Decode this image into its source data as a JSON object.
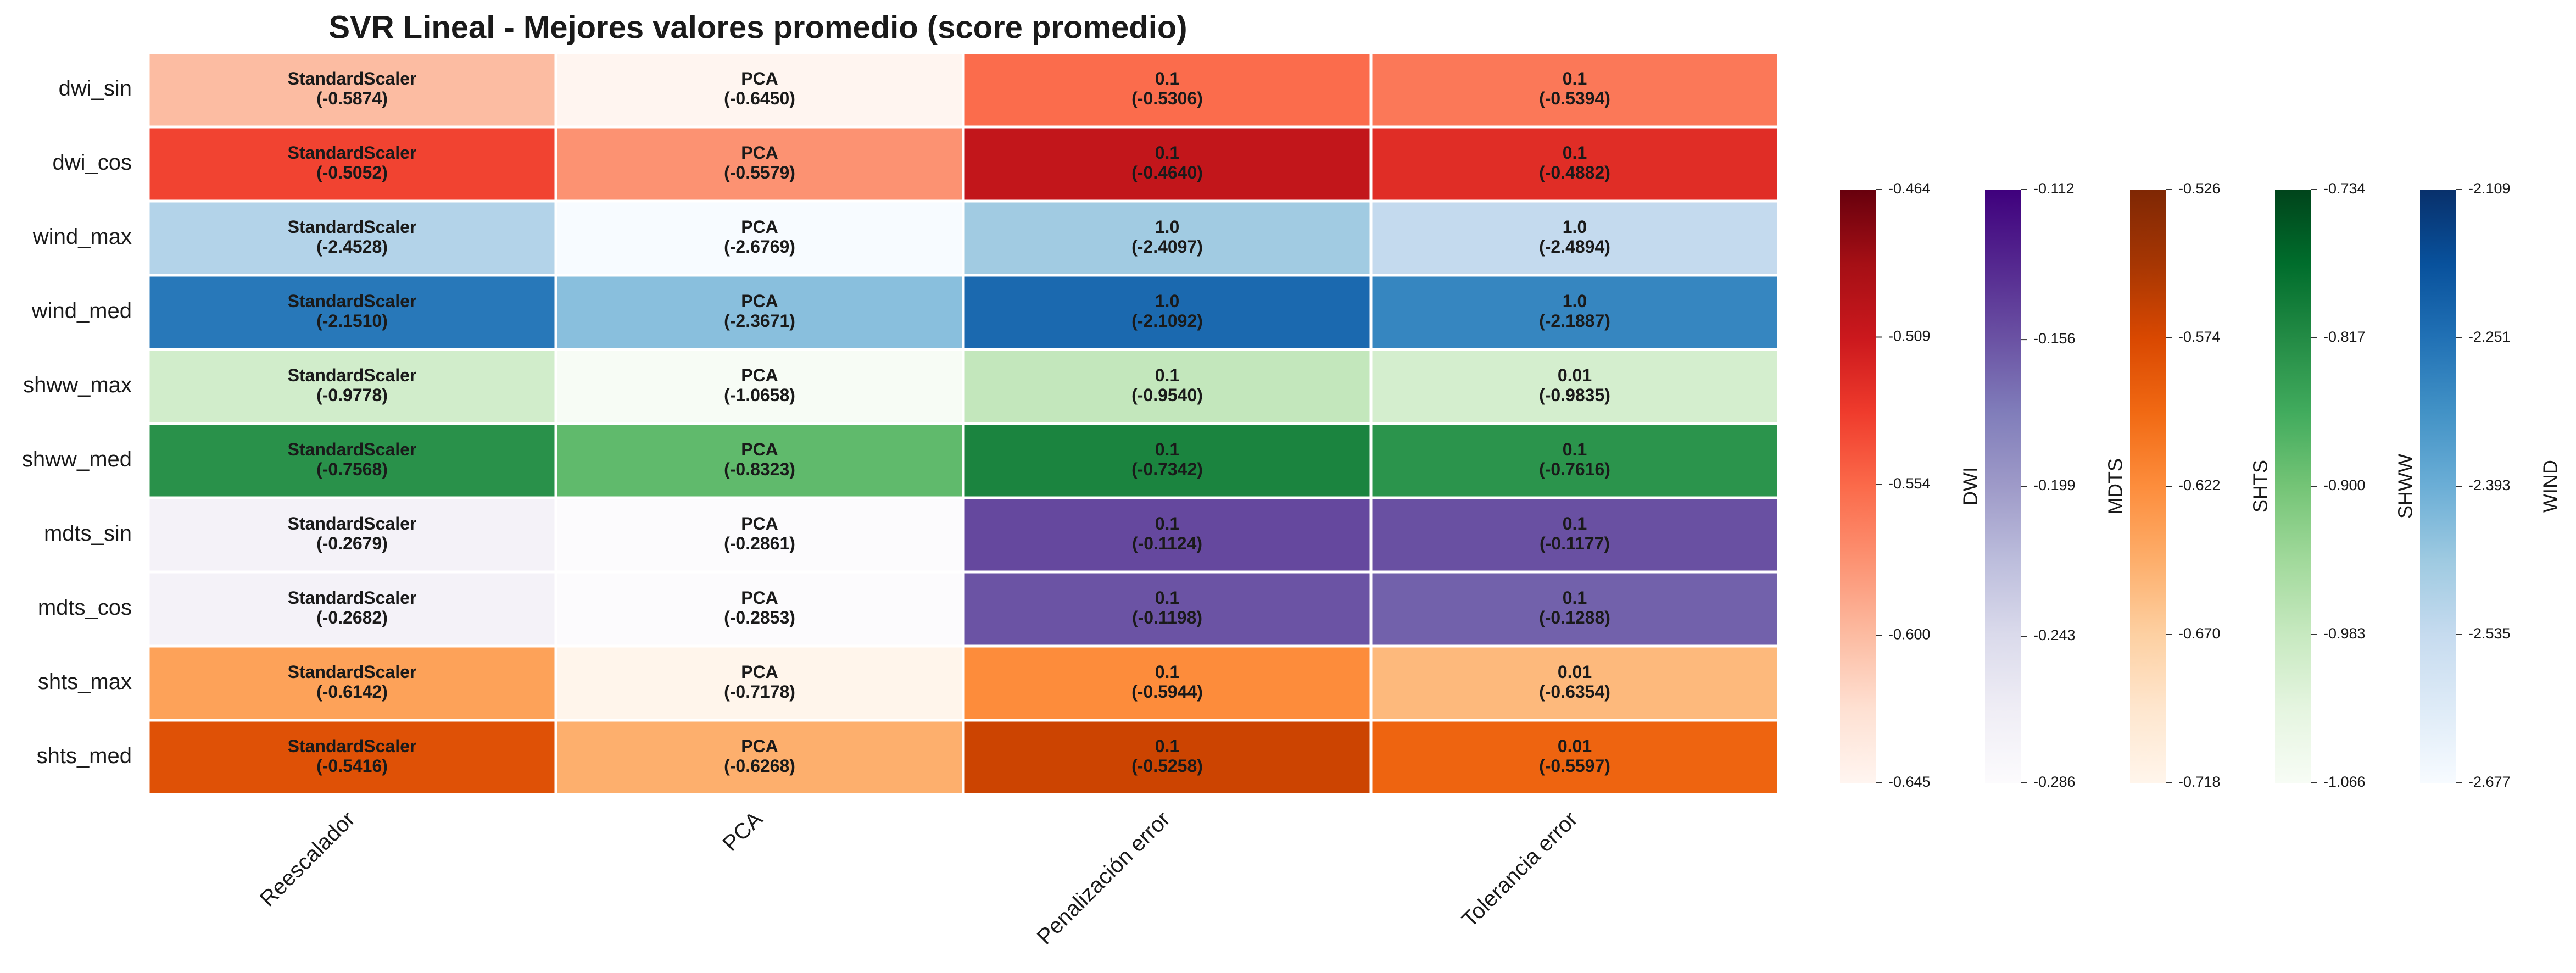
{
  "chart_data": {
    "type": "heatmap",
    "title": "SVR Lineal - Mejores valores promedio (score promedio)",
    "rows": [
      "dwi_sin",
      "dwi_cos",
      "wind_max",
      "wind_med",
      "shww_max",
      "shww_med",
      "mdts_sin",
      "mdts_cos",
      "shts_max",
      "shts_med"
    ],
    "columns": [
      "Reescalador",
      "PCA",
      "Penalización error",
      "Tolerancia error"
    ],
    "cells": [
      [
        {
          "label": "StandardScaler",
          "value": -0.5874,
          "value_label": "(-0.5874)"
        },
        {
          "label": "PCA",
          "value": -0.645,
          "value_label": "(-0.6450)"
        },
        {
          "label": "0.1",
          "value": -0.5306,
          "value_label": "(-0.5306)"
        },
        {
          "label": "0.1",
          "value": -0.5394,
          "value_label": "(-0.5394)"
        }
      ],
      [
        {
          "label": "StandardScaler",
          "value": -0.5052,
          "value_label": "(-0.5052)"
        },
        {
          "label": "PCA",
          "value": -0.5579,
          "value_label": "(-0.5579)"
        },
        {
          "label": "0.1",
          "value": -0.464,
          "value_label": "(-0.4640)"
        },
        {
          "label": "0.1",
          "value": -0.4882,
          "value_label": "(-0.4882)"
        }
      ],
      [
        {
          "label": "StandardScaler",
          "value": -2.4528,
          "value_label": "(-2.4528)"
        },
        {
          "label": "PCA",
          "value": -2.6769,
          "value_label": "(-2.6769)"
        },
        {
          "label": "1.0",
          "value": -2.4097,
          "value_label": "(-2.4097)"
        },
        {
          "label": "1.0",
          "value": -2.4894,
          "value_label": "(-2.4894)"
        }
      ],
      [
        {
          "label": "StandardScaler",
          "value": -2.151,
          "value_label": "(-2.1510)"
        },
        {
          "label": "PCA",
          "value": -2.3671,
          "value_label": "(-2.3671)"
        },
        {
          "label": "1.0",
          "value": -2.1092,
          "value_label": "(-2.1092)"
        },
        {
          "label": "1.0",
          "value": -2.1887,
          "value_label": "(-2.1887)"
        }
      ],
      [
        {
          "label": "StandardScaler",
          "value": -0.9778,
          "value_label": "(-0.9778)"
        },
        {
          "label": "PCA",
          "value": -1.0658,
          "value_label": "(-1.0658)"
        },
        {
          "label": "0.1",
          "value": -0.954,
          "value_label": "(-0.9540)"
        },
        {
          "label": "0.01",
          "value": -0.9835,
          "value_label": "(-0.9835)"
        }
      ],
      [
        {
          "label": "StandardScaler",
          "value": -0.7568,
          "value_label": "(-0.7568)"
        },
        {
          "label": "PCA",
          "value": -0.8323,
          "value_label": "(-0.8323)"
        },
        {
          "label": "0.1",
          "value": -0.7342,
          "value_label": "(-0.7342)"
        },
        {
          "label": "0.1",
          "value": -0.7616,
          "value_label": "(-0.7616)"
        }
      ],
      [
        {
          "label": "StandardScaler",
          "value": -0.2679,
          "value_label": "(-0.2679)"
        },
        {
          "label": "PCA",
          "value": -0.2861,
          "value_label": "(-0.2861)"
        },
        {
          "label": "0.1",
          "value": -0.1124,
          "value_label": "(-0.1124)"
        },
        {
          "label": "0.1",
          "value": -0.1177,
          "value_label": "(-0.1177)"
        }
      ],
      [
        {
          "label": "StandardScaler",
          "value": -0.2682,
          "value_label": "(-0.2682)"
        },
        {
          "label": "PCA",
          "value": -0.2853,
          "value_label": "(-0.2853)"
        },
        {
          "label": "0.1",
          "value": -0.1198,
          "value_label": "(-0.1198)"
        },
        {
          "label": "0.1",
          "value": -0.1288,
          "value_label": "(-0.1288)"
        }
      ],
      [
        {
          "label": "StandardScaler",
          "value": -0.6142,
          "value_label": "(-0.6142)"
        },
        {
          "label": "PCA",
          "value": -0.7178,
          "value_label": "(-0.7178)"
        },
        {
          "label": "0.1",
          "value": -0.5944,
          "value_label": "(-0.5944)"
        },
        {
          "label": "0.01",
          "value": -0.6354,
          "value_label": "(-0.6354)"
        }
      ],
      [
        {
          "label": "StandardScaler",
          "value": -0.5416,
          "value_label": "(-0.5416)"
        },
        {
          "label": "PCA",
          "value": -0.6268,
          "value_label": "(-0.6268)"
        },
        {
          "label": "0.1",
          "value": -0.5258,
          "value_label": "(-0.5258)"
        },
        {
          "label": "0.01",
          "value": -0.5597,
          "value_label": "(-0.5597)"
        }
      ]
    ],
    "colorbars": [
      {
        "label": "DWI",
        "lim": [
          -0.645,
          -0.464
        ],
        "ticks": [
          -0.464,
          -0.509,
          -0.554,
          {
            "value": -0.6,
            "label": "-0.600"
          },
          -0.645
        ],
        "colors": [
          "#fff5f0",
          "#fee0d2",
          "#fcbba1",
          "#fc9272",
          "#fb6a4a",
          "#ef3b2c",
          "#cb181d",
          "#a50f15",
          "#67000d"
        ]
      },
      {
        "label": "MDTS",
        "lim": [
          -0.286,
          -0.112
        ],
        "ticks": [
          -0.112,
          -0.156,
          -0.199,
          -0.243,
          -0.286
        ],
        "colors": [
          "#fcfbfd",
          "#efedf5",
          "#dadaeb",
          "#bcbddc",
          "#9e9ac8",
          "#807dba",
          "#6a51a3",
          "#54278f",
          "#3f007d"
        ]
      },
      {
        "label": "SHTS",
        "lim": [
          -0.718,
          -0.526
        ],
        "ticks": [
          -0.526,
          -0.574,
          -0.622,
          {
            "value": -0.67,
            "label": "-0.670"
          },
          -0.718
        ],
        "colors": [
          "#fff5eb",
          "#fee6ce",
          "#fdd0a2",
          "#fdae6b",
          "#fd8d3c",
          "#f16913",
          "#d94801",
          "#a63603",
          "#7f2704"
        ]
      },
      {
        "label": "SHWW",
        "lim": [
          -1.066,
          -0.734
        ],
        "ticks": [
          -0.734,
          -0.817,
          {
            "value": -0.9,
            "label": "-0.900"
          },
          -0.983,
          -1.066
        ],
        "colors": [
          "#f7fcf5",
          "#e5f5e0",
          "#c7e9c0",
          "#a1d99b",
          "#74c476",
          "#41ab5d",
          "#238b45",
          "#006d2c",
          "#00441b"
        ]
      },
      {
        "label": "WIND",
        "lim": [
          -2.677,
          -2.109
        ],
        "ticks": [
          -2.109,
          -2.251,
          -2.393,
          -2.535,
          -2.677
        ],
        "colors": [
          "#f7fbff",
          "#deebf7",
          "#c6dbef",
          "#9ecae1",
          "#6baed6",
          "#4292c6",
          "#2171b5",
          "#08519c",
          "#08306b"
        ]
      }
    ]
  }
}
